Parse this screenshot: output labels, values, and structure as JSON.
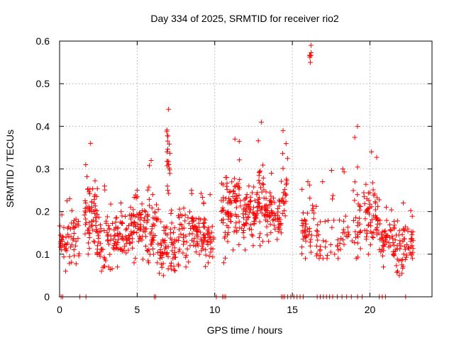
{
  "chart_data": {
    "type": "scatter",
    "title": "Day 334 of 2025, SRMTID for receiver rio2",
    "xlabel": "GPS time / hours",
    "ylabel": "SRMTID / TECUs",
    "xlim": [
      0,
      24
    ],
    "ylim": [
      0,
      0.6
    ],
    "x_ticks": [
      0,
      5,
      10,
      15,
      20
    ],
    "x_tick_labels": [
      "0",
      "5",
      "10",
      "15",
      "20"
    ],
    "y_ticks": [
      0,
      0.1,
      0.2,
      0.3,
      0.4,
      0.5,
      0.6
    ],
    "y_tick_labels": [
      "0",
      "0.1",
      "0.2",
      "0.3",
      "0.4",
      "0.5",
      "0.6"
    ],
    "grid": true,
    "marker": "plus",
    "color": "#ff0000",
    "series": [
      {
        "name": "SRMTID",
        "clusters": [
          {
            "x_start": 0.0,
            "x_end": 1.3,
            "y_min": 0.06,
            "y_max": 0.23,
            "y_mean": 0.13,
            "n": 60
          },
          {
            "x_start": 1.6,
            "x_end": 2.4,
            "y_min": 0.1,
            "y_max": 0.36,
            "y_mean": 0.19,
            "n": 60
          },
          {
            "x_start": 2.4,
            "x_end": 3.4,
            "y_min": 0.06,
            "y_max": 0.26,
            "y_mean": 0.13,
            "n": 50
          },
          {
            "x_start": 3.4,
            "x_end": 4.5,
            "y_min": 0.07,
            "y_max": 0.22,
            "y_mean": 0.14,
            "n": 60
          },
          {
            "x_start": 4.5,
            "x_end": 5.5,
            "y_min": 0.08,
            "y_max": 0.25,
            "y_mean": 0.17,
            "n": 60
          },
          {
            "x_start": 5.5,
            "x_end": 6.3,
            "y_min": 0.08,
            "y_max": 0.32,
            "y_mean": 0.16,
            "n": 50
          },
          {
            "x_start": 6.3,
            "x_end": 7.6,
            "y_min": 0.05,
            "y_max": 0.26,
            "y_mean": 0.12,
            "n": 70
          },
          {
            "x_start": 6.9,
            "x_end": 7.15,
            "y_min": 0.25,
            "y_max": 0.44,
            "y_mean": 0.34,
            "n": 18
          },
          {
            "x_start": 7.6,
            "x_end": 9.4,
            "y_min": 0.07,
            "y_max": 0.25,
            "y_mean": 0.15,
            "n": 100
          },
          {
            "x_start": 9.4,
            "x_end": 10.0,
            "y_min": 0.08,
            "y_max": 0.24,
            "y_mean": 0.13,
            "n": 25
          },
          {
            "x_start": 10.4,
            "x_end": 11.0,
            "y_min": 0.08,
            "y_max": 0.28,
            "y_mean": 0.21,
            "n": 40
          },
          {
            "x_start": 11.0,
            "x_end": 11.6,
            "y_min": 0.11,
            "y_max": 0.37,
            "y_mean": 0.23,
            "n": 45
          },
          {
            "x_start": 11.6,
            "x_end": 12.8,
            "y_min": 0.11,
            "y_max": 0.26,
            "y_mean": 0.19,
            "n": 70
          },
          {
            "x_start": 12.8,
            "x_end": 13.2,
            "y_min": 0.12,
            "y_max": 0.41,
            "y_mean": 0.24,
            "n": 30
          },
          {
            "x_start": 13.2,
            "x_end": 14.1,
            "y_min": 0.13,
            "y_max": 0.29,
            "y_mean": 0.2,
            "n": 55
          },
          {
            "x_start": 14.1,
            "x_end": 14.7,
            "y_min": 0.15,
            "y_max": 0.39,
            "y_mean": 0.22,
            "n": 35
          },
          {
            "x_start": 15.6,
            "x_end": 16.4,
            "y_min": 0.09,
            "y_max": 0.27,
            "y_mean": 0.17,
            "n": 40
          },
          {
            "x_start": 16.1,
            "x_end": 16.3,
            "y_min": 0.55,
            "y_max": 0.59,
            "y_mean": 0.57,
            "n": 6
          },
          {
            "x_start": 16.4,
            "x_end": 17.5,
            "y_min": 0.09,
            "y_max": 0.27,
            "y_mean": 0.14,
            "n": 25
          },
          {
            "x_start": 17.5,
            "x_end": 19.0,
            "y_min": 0.09,
            "y_max": 0.3,
            "y_mean": 0.15,
            "n": 30
          },
          {
            "x_start": 19.0,
            "x_end": 19.4,
            "y_min": 0.09,
            "y_max": 0.4,
            "y_mean": 0.2,
            "n": 25
          },
          {
            "x_start": 19.6,
            "x_end": 20.6,
            "y_min": 0.1,
            "y_max": 0.34,
            "y_mean": 0.19,
            "n": 60
          },
          {
            "x_start": 20.6,
            "x_end": 21.5,
            "y_min": 0.07,
            "y_max": 0.21,
            "y_mean": 0.13,
            "n": 45
          },
          {
            "x_start": 21.5,
            "x_end": 22.8,
            "y_min": 0.05,
            "y_max": 0.22,
            "y_mean": 0.12,
            "n": 70
          }
        ],
        "zero_points_x": [
          0.1,
          0.2,
          1.3,
          1.7,
          6.1,
          6.2,
          10.1,
          10.5,
          10.6,
          10.7,
          14.3,
          14.4,
          14.5,
          14.7,
          14.9,
          15.1,
          15.3,
          15.5,
          15.7,
          16.6,
          16.8,
          17.0,
          17.2,
          17.4,
          17.6,
          17.9,
          18.2,
          18.5,
          18.8,
          19.2,
          19.5,
          20.6,
          20.8,
          21.0,
          22.3
        ]
      }
    ]
  }
}
